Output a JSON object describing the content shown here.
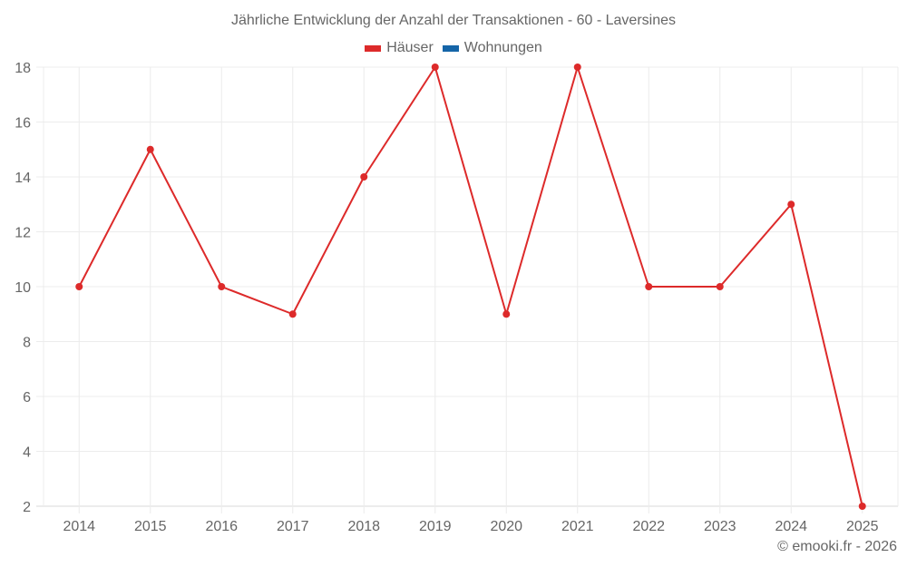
{
  "title": "Jährliche Entwicklung der Anzahl der Transaktionen - 60 - Laversines",
  "legend": [
    {
      "label": "Häuser",
      "color": "#dd2a2a"
    },
    {
      "label": "Wohnungen",
      "color": "#1565a8"
    }
  ],
  "credit": "© emooki.fr - 2026",
  "chart_data": {
    "type": "line",
    "title": "Jährliche Entwicklung der Anzahl der Transaktionen - 60 - Laversines",
    "xlabel": "",
    "ylabel": "",
    "categories": [
      "2014",
      "2015",
      "2016",
      "2017",
      "2018",
      "2019",
      "2020",
      "2021",
      "2022",
      "2023",
      "2024",
      "2025"
    ],
    "series": [
      {
        "name": "Häuser",
        "color": "#dd2a2a",
        "values": [
          10,
          15,
          10,
          9,
          14,
          18,
          9,
          18,
          10,
          10,
          13,
          2
        ]
      },
      {
        "name": "Wohnungen",
        "color": "#1565a8",
        "values": []
      }
    ],
    "ylim": [
      2,
      18
    ],
    "yticks": [
      2,
      4,
      6,
      8,
      10,
      12,
      14,
      16,
      18
    ],
    "grid": true,
    "legend_position": "top"
  }
}
